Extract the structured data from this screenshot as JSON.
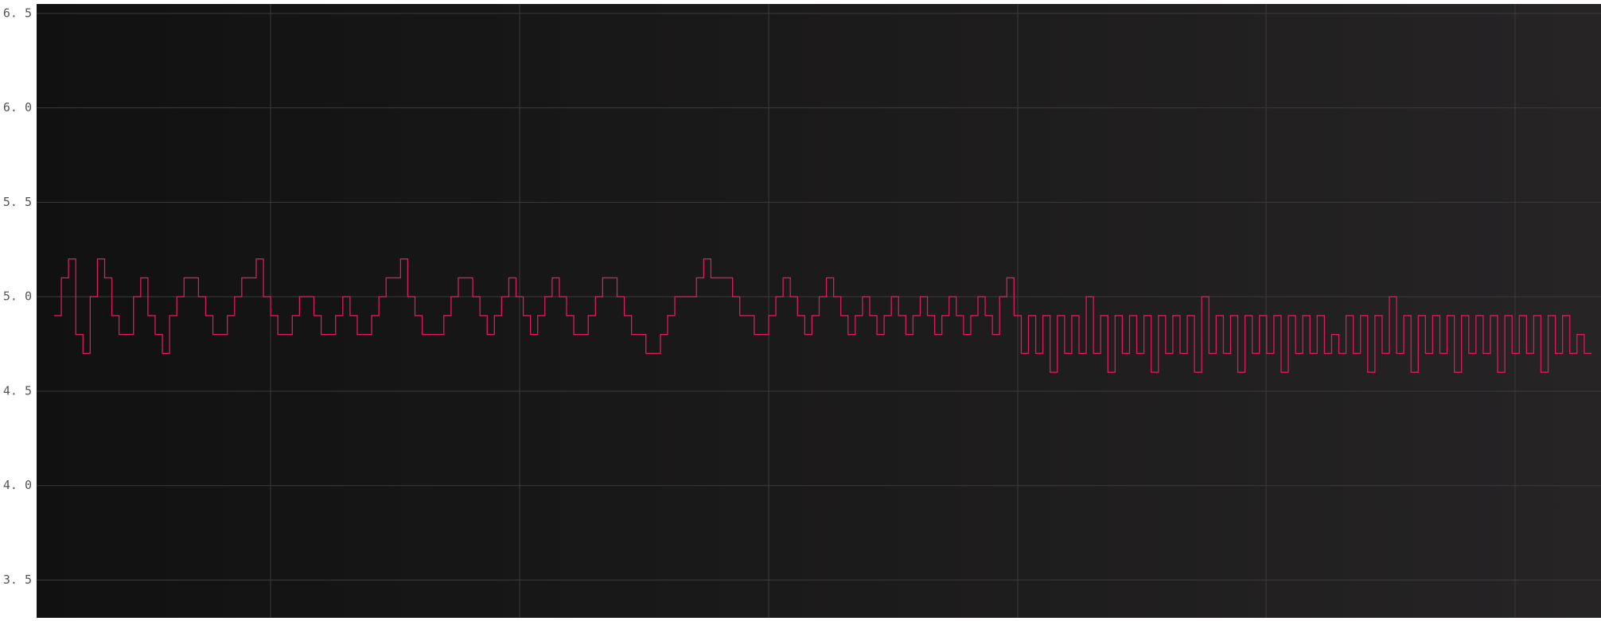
{
  "chart_data": {
    "type": "line",
    "step": true,
    "color": "#e0185c",
    "grid": true,
    "ylim": [
      3.3,
      6.55
    ],
    "yticks": [
      {
        "value": 3.5,
        "label": "3. 5"
      },
      {
        "value": 4.0,
        "label": "4. 0"
      },
      {
        "value": 4.5,
        "label": "4. 5"
      },
      {
        "value": 5.0,
        "label": "5. 0"
      },
      {
        "value": 5.5,
        "label": "5. 5"
      },
      {
        "value": 6.0,
        "label": "6. 0"
      },
      {
        "value": 6.5,
        "label": "6. 5"
      }
    ],
    "values": [
      4.9,
      5.1,
      5.2,
      4.8,
      4.7,
      5.0,
      5.2,
      5.1,
      4.9,
      4.8,
      4.8,
      5.0,
      5.1,
      4.9,
      4.8,
      4.7,
      4.9,
      5.0,
      5.1,
      5.1,
      5.0,
      4.9,
      4.8,
      4.8,
      4.9,
      5.0,
      5.1,
      5.1,
      5.2,
      5.0,
      4.9,
      4.8,
      4.8,
      4.9,
      5.0,
      5.0,
      4.9,
      4.8,
      4.8,
      4.9,
      5.0,
      4.9,
      4.8,
      4.8,
      4.9,
      5.0,
      5.1,
      5.1,
      5.2,
      5.0,
      4.9,
      4.8,
      4.8,
      4.8,
      4.9,
      5.0,
      5.1,
      5.1,
      5.0,
      4.9,
      4.8,
      4.9,
      5.0,
      5.1,
      5.0,
      4.9,
      4.8,
      4.9,
      5.0,
      5.1,
      5.0,
      4.9,
      4.8,
      4.8,
      4.9,
      5.0,
      5.1,
      5.1,
      5.0,
      4.9,
      4.8,
      4.8,
      4.7,
      4.7,
      4.8,
      4.9,
      5.0,
      5.0,
      5.0,
      5.1,
      5.2,
      5.1,
      5.1,
      5.1,
      5.0,
      4.9,
      4.9,
      4.8,
      4.8,
      4.9,
      5.0,
      5.1,
      5.0,
      4.9,
      4.8,
      4.9,
      5.0,
      5.1,
      5.0,
      4.9,
      4.8,
      4.9,
      5.0,
      4.9,
      4.8,
      4.9,
      5.0,
      4.9,
      4.8,
      4.9,
      5.0,
      4.9,
      4.8,
      4.9,
      5.0,
      4.9,
      4.8,
      4.9,
      5.0,
      4.9,
      4.8,
      5.0,
      5.1,
      4.9,
      4.7,
      4.9,
      4.7,
      4.9,
      4.6,
      4.9,
      4.7,
      4.9,
      4.7,
      5.0,
      4.7,
      4.9,
      4.6,
      4.9,
      4.7,
      4.9,
      4.7,
      4.9,
      4.6,
      4.9,
      4.7,
      4.9,
      4.7,
      4.9,
      4.6,
      5.0,
      4.7,
      4.9,
      4.7,
      4.9,
      4.6,
      4.9,
      4.7,
      4.9,
      4.7,
      4.9,
      4.6,
      4.9,
      4.7,
      4.9,
      4.7,
      4.9,
      4.7,
      4.8,
      4.7,
      4.9,
      4.7,
      4.9,
      4.6,
      4.9,
      4.7,
      5.0,
      4.7,
      4.9,
      4.6,
      4.9,
      4.7,
      4.9,
      4.7,
      4.9,
      4.6,
      4.9,
      4.7,
      4.9,
      4.7,
      4.9,
      4.6,
      4.9,
      4.7,
      4.9,
      4.7,
      4.9,
      4.6,
      4.9,
      4.7,
      4.9,
      4.7,
      4.8,
      4.7
    ]
  }
}
